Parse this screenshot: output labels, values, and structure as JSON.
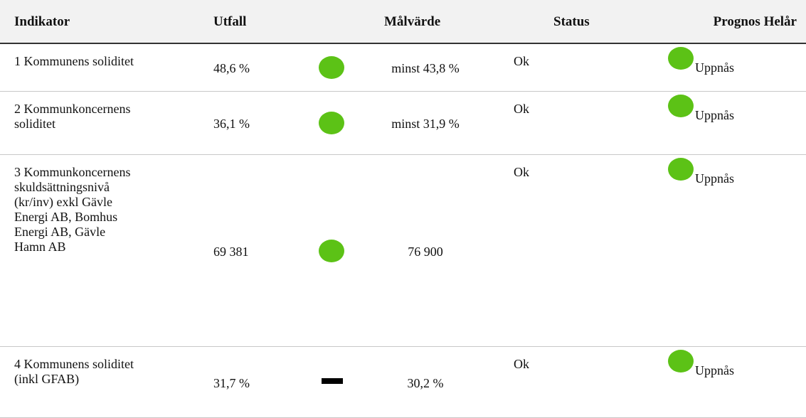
{
  "table": {
    "header": [
      "Indikator",
      "Utfall",
      "Målvärde",
      "Status",
      "Prognos Helår"
    ],
    "rows": [
      [
        "1 Kommunens soliditet",
        "48,6 %",
        "minst 43,8 %",
        "Ok",
        "Uppnås"
      ],
      [
        "2 Kommunkoncernens soliditet",
        "36,1 %",
        "minst 31,9 %",
        "Ok",
        "Uppnås"
      ],
      [
        "3 Kommunkoncernens skuldsättningsnivå (kr/inv) exkl Gävle Energi AB, Bomhus Energi AB, Gävle Hamn AB",
        "69 381",
        "76 900",
        "Ok",
        "Uppnås"
      ],
      [
        "4 Kommunens soliditet (inkl GFAB)",
        "31,7 %",
        "30,2 %",
        "Ok",
        "Uppnås"
      ]
    ]
  }
}
